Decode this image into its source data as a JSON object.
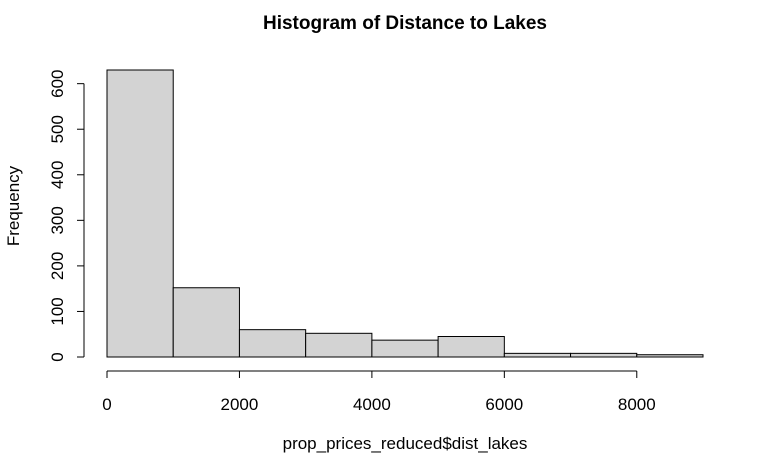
{
  "chart_data": {
    "type": "bar",
    "title": "Histogram of Distance to Lakes",
    "xlabel": "prop_prices_reduced$dist_lakes",
    "ylabel": "Frequency",
    "bins": [
      {
        "x0": 0,
        "x1": 1000,
        "count": 630
      },
      {
        "x0": 1000,
        "x1": 2000,
        "count": 152
      },
      {
        "x0": 2000,
        "x1": 3000,
        "count": 60
      },
      {
        "x0": 3000,
        "x1": 4000,
        "count": 52
      },
      {
        "x0": 4000,
        "x1": 5000,
        "count": 37
      },
      {
        "x0": 5000,
        "x1": 6000,
        "count": 45
      },
      {
        "x0": 6000,
        "x1": 7000,
        "count": 8
      },
      {
        "x0": 7000,
        "x1": 8000,
        "count": 8
      },
      {
        "x0": 8000,
        "x1": 9000,
        "count": 5
      }
    ],
    "xlim": [
      0,
      9000
    ],
    "ylim": [
      0,
      630
    ],
    "x_ticks": [
      "0",
      "2000",
      "4000",
      "6000",
      "8000"
    ],
    "y_ticks": [
      "0",
      "100",
      "200",
      "300",
      "400",
      "500",
      "600"
    ],
    "grid": false,
    "legend": "none"
  }
}
